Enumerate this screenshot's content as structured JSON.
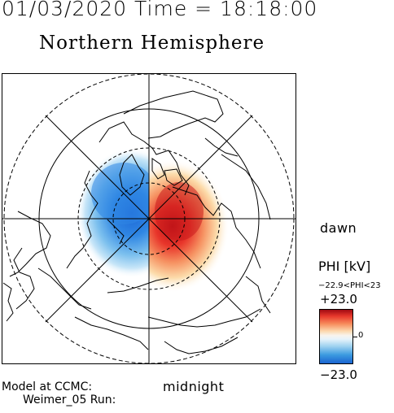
{
  "header": {
    "time_line": "01/03/2020 Time = 18:18:00"
  },
  "map": {
    "title": "Northern Hemisphere",
    "label_dawn": "dawn",
    "label_midnight": "midnight",
    "projection": "polar stereographic, north pole centered",
    "potential_field": {
      "negative_cell_side": "dusk (left)",
      "positive_cell_side": "dawn (right)"
    }
  },
  "model": {
    "line1": "Model at CCMC:",
    "line2": "Weimer_05 Run:"
  },
  "colorbar": {
    "title": "PHI [kV]",
    "range_text": "−22.9<PHI<23",
    "max_label": "+23.0",
    "min_label": "−23.0",
    "zero_label": "0",
    "max_color": "#9e0a12",
    "min_color": "#1a64d0",
    "mid_color": "#f8f4ee"
  }
}
